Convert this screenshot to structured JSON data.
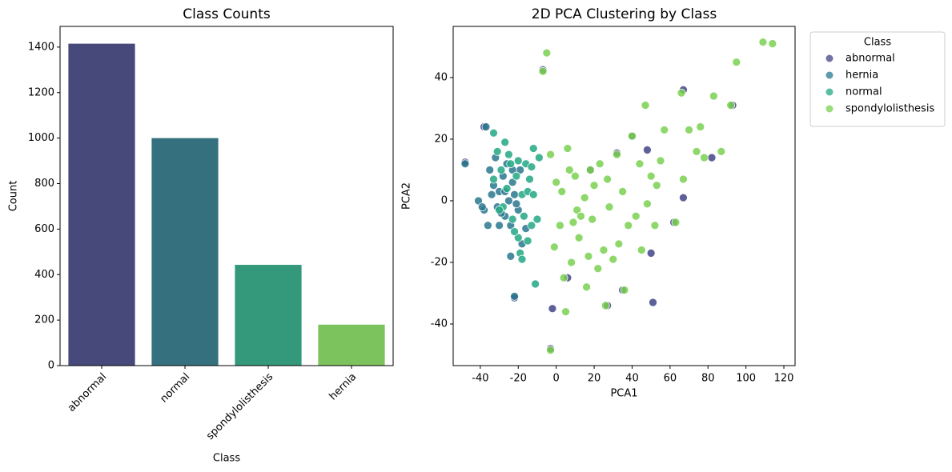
{
  "chart_data": [
    {
      "type": "bar",
      "title": "Class Counts",
      "x_label": "Class",
      "y_label": "Count",
      "categories": [
        "abnormal",
        "normal",
        "spondylolisthesis",
        "hernia"
      ],
      "values": [
        1415,
        1000,
        443,
        180
      ],
      "colors": [
        "#48497b",
        "#34707e",
        "#33997a",
        "#7cc35d"
      ],
      "ylim": [
        0,
        1491
      ],
      "yticks": [
        0,
        200,
        400,
        600,
        800,
        1000,
        1200,
        1400
      ]
    },
    {
      "type": "scatter",
      "title": "2D PCA Clustering by Class",
      "x_label": "PCA1",
      "y_label": "PCA2",
      "legend_title": "Class",
      "legend": "outside upper right",
      "xlim": [
        -54.3,
        125.9
      ],
      "ylim": [
        -53.5,
        56.6
      ],
      "xticks": [
        -40,
        -20,
        0,
        20,
        40,
        60,
        80,
        100,
        120
      ],
      "yticks": [
        -40,
        -20,
        0,
        20,
        40
      ],
      "series": [
        {
          "name": "abnormal",
          "color": "#414487",
          "x": [
            -48,
            -38,
            -22,
            -7,
            -2,
            18,
            32,
            40,
            48,
            50,
            51,
            67,
            67,
            82,
            93,
            27,
            35,
            62,
            -3,
            6
          ],
          "y": [
            12.5,
            24,
            -31.5,
            42.5,
            -35,
            10,
            15.5,
            21,
            16.5,
            -17,
            -33,
            36,
            1,
            14,
            31,
            -34,
            -29,
            -7,
            -48,
            -25
          ]
        },
        {
          "name": "hernia",
          "color": "#2a788e",
          "x": [
            -48,
            -41,
            -38,
            -37,
            -35,
            -33,
            -31,
            -30,
            -28,
            -27,
            -26,
            -25,
            -24,
            -23,
            -22,
            -22,
            -20,
            -19,
            -18,
            -36,
            -32,
            -29,
            -24,
            -21,
            -16,
            -34,
            -39,
            -27,
            -23,
            -30
          ],
          "y": [
            12,
            0,
            -3,
            24,
            10,
            5,
            -2,
            3,
            8,
            -5,
            12,
            0,
            -8,
            6,
            -31,
            2,
            -3,
            10,
            -14,
            -8,
            14,
            -4,
            -18,
            -1,
            -9,
            2,
            -2,
            3,
            10,
            -8
          ]
        },
        {
          "name": "normal",
          "color": "#22a884",
          "x": [
            -33,
            -31,
            -29,
            -28,
            -26,
            -25,
            -23,
            -21,
            -20,
            -19,
            -18,
            -17,
            -16,
            -15,
            -14,
            -13,
            -12,
            -11,
            -10,
            -9,
            -33,
            -30,
            -27,
            -24,
            -22,
            -20,
            -18,
            -15,
            -13,
            -12
          ],
          "y": [
            22,
            16,
            10,
            -2,
            4,
            15,
            -6,
            8,
            -12,
            -17,
            2,
            -5,
            12,
            -13,
            7,
            -8,
            17,
            -27,
            -6,
            14,
            7,
            -3,
            19,
            12,
            -10,
            13,
            -19,
            3,
            11,
            2
          ]
        },
        {
          "name": "spondylolisthesis",
          "color": "#7ad151",
          "x": [
            -7,
            -5,
            -3,
            -1,
            0,
            2,
            3,
            4,
            5,
            6,
            7,
            8,
            9,
            10,
            11,
            12,
            13,
            15,
            16,
            17,
            18,
            19,
            20,
            22,
            23,
            25,
            27,
            28,
            30,
            32,
            33,
            35,
            36,
            38,
            40,
            42,
            44,
            45,
            47,
            48,
            50,
            52,
            53,
            55,
            57,
            63,
            66,
            67,
            70,
            74,
            76,
            78,
            83,
            87,
            92,
            95,
            109,
            114,
            -3,
            26
          ],
          "y": [
            42,
            48,
            15,
            -15,
            6,
            -8,
            3,
            -25,
            -36,
            17,
            10,
            -20,
            -7,
            8,
            -3,
            -12,
            -5,
            1,
            -28,
            -18,
            10,
            -6,
            5,
            -22,
            12,
            -16,
            7,
            -2,
            -19,
            15,
            -14,
            3,
            -29,
            -8,
            21,
            -5,
            12,
            -16,
            31,
            -1,
            8,
            -8,
            5,
            13,
            23,
            -7,
            35,
            7,
            23,
            16,
            24,
            14,
            34,
            16,
            31,
            45,
            51.5,
            51,
            -48.5,
            -34
          ]
        }
      ]
    }
  ]
}
